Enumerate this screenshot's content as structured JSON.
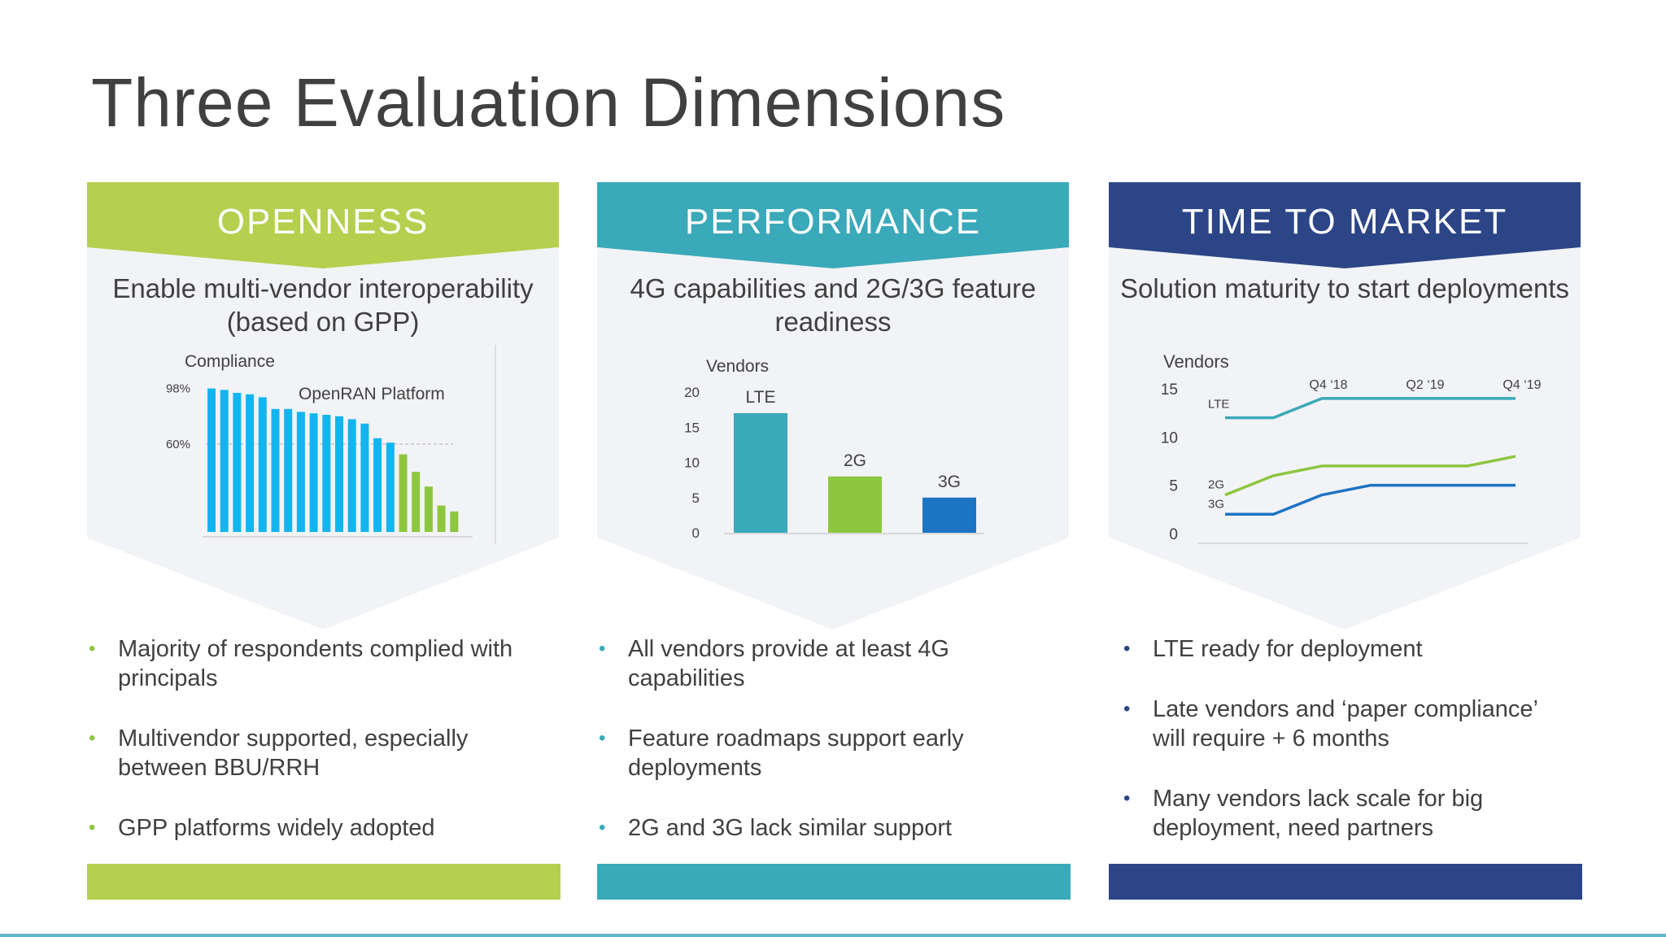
{
  "title": "Three Evaluation Dimensions",
  "colors": {
    "green": "#b5cf4e",
    "teal": "#3aa9b9",
    "navy": "#2b4587",
    "bar_blue": "#12b5ef",
    "bar_green": "#8dc63f",
    "dark_blue": "#1d74c4",
    "panel_bg": "#f2f3f6"
  },
  "columns": [
    {
      "header": "OPENNESS",
      "subtitle": "Enable multi-vendor interoperability (based on GPP)",
      "bullets": [
        "Majority of respondents complied with principals",
        "Multivendor supported, especially between BBU/RRH",
        "GPP platforms widely adopted"
      ]
    },
    {
      "header": "PERFORMANCE",
      "subtitle": "4G capabilities and 2G/3G feature readiness",
      "bullets": [
        "All vendors provide at least 4G capabilities",
        "Feature roadmaps support early deployments",
        "2G and 3G lack similar support"
      ]
    },
    {
      "header": "TIME TO MARKET",
      "subtitle": "Solution maturity to start deployments",
      "bullets": [
        "LTE ready for deployment",
        "Late vendors and ‘paper compliance’ will require + 6 months",
        "Many vendors lack scale for big deployment, need partners"
      ]
    }
  ],
  "chart_data": [
    {
      "type": "bar",
      "title": "OpenRAN Platform",
      "ylabel": "Compliance",
      "ytick_labels": [
        "98%",
        "60%"
      ],
      "ytick_values": [
        98,
        60
      ],
      "reference_line": 60,
      "ylim": [
        0,
        100
      ],
      "values": [
        98,
        97,
        95,
        94,
        92,
        84,
        84,
        82,
        81,
        80,
        79,
        77,
        74,
        64,
        61,
        53,
        41,
        31,
        18,
        14
      ],
      "highlight_from_index": 15
    },
    {
      "type": "bar",
      "ylabel": "Vendors",
      "categories": [
        "LTE",
        "2G",
        "3G"
      ],
      "values": [
        17,
        8,
        5
      ],
      "yticks": [
        0,
        5,
        10,
        15,
        20
      ],
      "ylim": [
        0,
        20
      ]
    },
    {
      "type": "line",
      "ylabel": "Vendors",
      "yticks": [
        0,
        5,
        10,
        15
      ],
      "ylim": [
        0,
        15
      ],
      "x_labels": [
        "Q4 ‘18",
        "Q2 ‘19",
        "Q4 ‘19"
      ],
      "x_positions": [
        1,
        2,
        3
      ],
      "x": [
        0,
        0.5,
        1,
        1.5,
        2,
        2.5,
        3
      ],
      "series": [
        {
          "name": "LTE",
          "values": [
            12,
            12,
            14,
            14,
            14,
            14,
            14
          ]
        },
        {
          "name": "2G",
          "values": [
            4,
            6,
            7,
            7,
            7,
            7,
            8
          ]
        },
        {
          "name": "3G",
          "values": [
            2,
            2,
            4,
            5,
            5,
            5,
            5
          ]
        }
      ]
    }
  ]
}
